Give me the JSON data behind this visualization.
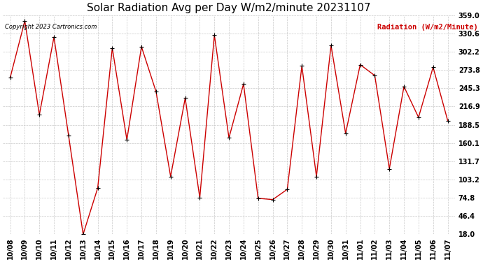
{
  "title": "Solar Radiation Avg per Day W/m2/minute 20231107",
  "copyright": "Copyright 2023 Cartronics.com",
  "ylabel": "Radiation (W/m2/Minute)",
  "dates": [
    "10/08",
    "10/09",
    "10/10",
    "10/11",
    "10/12",
    "10/13",
    "10/14",
    "10/15",
    "10/16",
    "10/17",
    "10/18",
    "10/19",
    "10/20",
    "10/21",
    "10/22",
    "10/23",
    "10/24",
    "10/25",
    "10/26",
    "10/27",
    "10/28",
    "10/29",
    "10/30",
    "10/31",
    "11/01",
    "11/02",
    "11/03",
    "11/04",
    "11/05",
    "11/06",
    "11/07"
  ],
  "values": [
    262,
    350,
    204,
    325,
    172,
    18,
    90,
    308,
    165,
    310,
    240,
    108,
    230,
    75,
    328,
    168,
    252,
    74,
    72,
    88,
    280,
    108,
    312,
    175,
    282,
    265,
    120,
    248,
    200,
    278,
    195
  ],
  "yticks": [
    18.0,
    46.4,
    74.8,
    103.2,
    131.7,
    160.1,
    188.5,
    216.9,
    245.3,
    273.8,
    302.2,
    330.6,
    359.0
  ],
  "ymin": 18.0,
  "ymax": 359.0,
  "line_color": "#cc0000",
  "marker_color": "#000000",
  "grid_color": "#bbbbbb",
  "bg_color": "#ffffff",
  "title_fontsize": 11,
  "copyright_color": "#000000",
  "ylabel_color": "#cc0000"
}
